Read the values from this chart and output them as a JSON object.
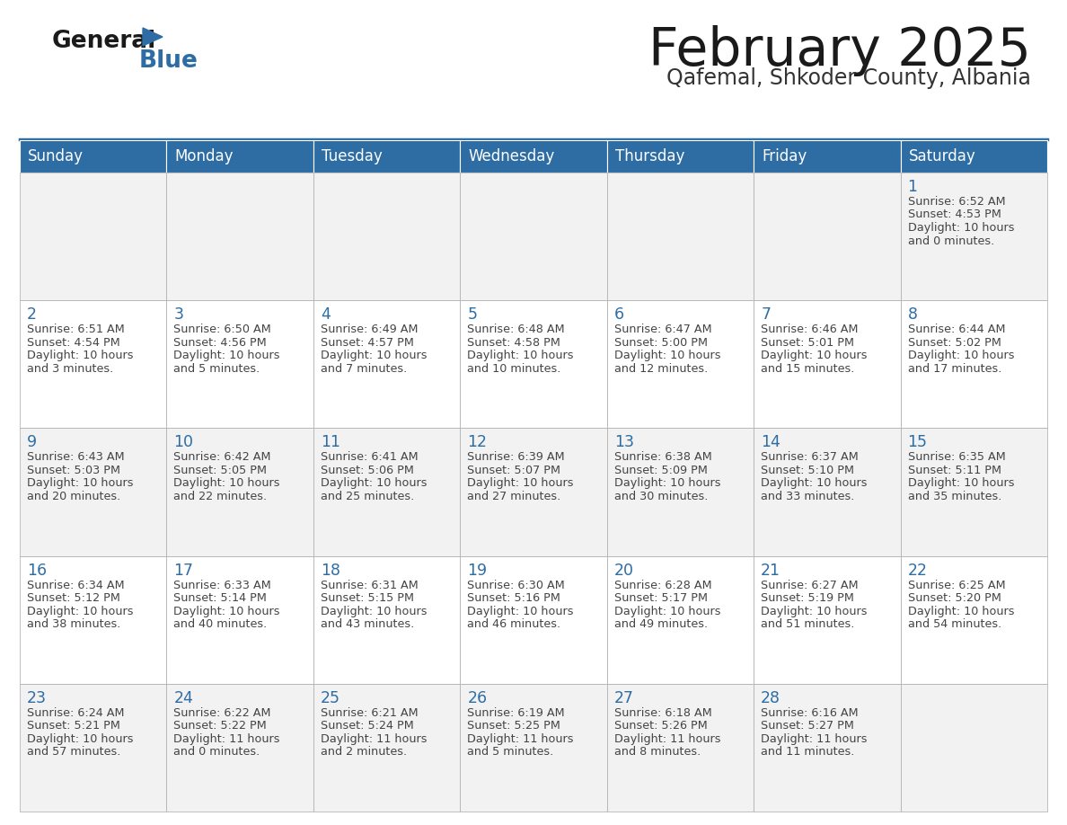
{
  "title": "February 2025",
  "subtitle": "Qafemal, Shkoder County, Albania",
  "days_of_week": [
    "Sunday",
    "Monday",
    "Tuesday",
    "Wednesday",
    "Thursday",
    "Friday",
    "Saturday"
  ],
  "header_bg": "#2E6DA4",
  "header_text": "#FFFFFF",
  "cell_bg_even": "#F2F2F2",
  "cell_bg_odd": "#FFFFFF",
  "cell_border": "#AAAAAA",
  "day_number_color": "#2E6DA4",
  "text_color": "#444444",
  "title_color": "#1a1a1a",
  "subtitle_color": "#333333",
  "logo_general_color": "#1a1a1a",
  "logo_blue_color": "#2E6DA4",
  "logo_triangle_color": "#2E6DA4",
  "calendar": [
    [
      null,
      null,
      null,
      null,
      null,
      null,
      {
        "day": 1,
        "sunrise": "6:52 AM",
        "sunset": "4:53 PM",
        "daylight_line1": "Daylight: 10 hours",
        "daylight_line2": "and 0 minutes."
      }
    ],
    [
      {
        "day": 2,
        "sunrise": "6:51 AM",
        "sunset": "4:54 PM",
        "daylight_line1": "Daylight: 10 hours",
        "daylight_line2": "and 3 minutes."
      },
      {
        "day": 3,
        "sunrise": "6:50 AM",
        "sunset": "4:56 PM",
        "daylight_line1": "Daylight: 10 hours",
        "daylight_line2": "and 5 minutes."
      },
      {
        "day": 4,
        "sunrise": "6:49 AM",
        "sunset": "4:57 PM",
        "daylight_line1": "Daylight: 10 hours",
        "daylight_line2": "and 7 minutes."
      },
      {
        "day": 5,
        "sunrise": "6:48 AM",
        "sunset": "4:58 PM",
        "daylight_line1": "Daylight: 10 hours",
        "daylight_line2": "and 10 minutes."
      },
      {
        "day": 6,
        "sunrise": "6:47 AM",
        "sunset": "5:00 PM",
        "daylight_line1": "Daylight: 10 hours",
        "daylight_line2": "and 12 minutes."
      },
      {
        "day": 7,
        "sunrise": "6:46 AM",
        "sunset": "5:01 PM",
        "daylight_line1": "Daylight: 10 hours",
        "daylight_line2": "and 15 minutes."
      },
      {
        "day": 8,
        "sunrise": "6:44 AM",
        "sunset": "5:02 PM",
        "daylight_line1": "Daylight: 10 hours",
        "daylight_line2": "and 17 minutes."
      }
    ],
    [
      {
        "day": 9,
        "sunrise": "6:43 AM",
        "sunset": "5:03 PM",
        "daylight_line1": "Daylight: 10 hours",
        "daylight_line2": "and 20 minutes."
      },
      {
        "day": 10,
        "sunrise": "6:42 AM",
        "sunset": "5:05 PM",
        "daylight_line1": "Daylight: 10 hours",
        "daylight_line2": "and 22 minutes."
      },
      {
        "day": 11,
        "sunrise": "6:41 AM",
        "sunset": "5:06 PM",
        "daylight_line1": "Daylight: 10 hours",
        "daylight_line2": "and 25 minutes."
      },
      {
        "day": 12,
        "sunrise": "6:39 AM",
        "sunset": "5:07 PM",
        "daylight_line1": "Daylight: 10 hours",
        "daylight_line2": "and 27 minutes."
      },
      {
        "day": 13,
        "sunrise": "6:38 AM",
        "sunset": "5:09 PM",
        "daylight_line1": "Daylight: 10 hours",
        "daylight_line2": "and 30 minutes."
      },
      {
        "day": 14,
        "sunrise": "6:37 AM",
        "sunset": "5:10 PM",
        "daylight_line1": "Daylight: 10 hours",
        "daylight_line2": "and 33 minutes."
      },
      {
        "day": 15,
        "sunrise": "6:35 AM",
        "sunset": "5:11 PM",
        "daylight_line1": "Daylight: 10 hours",
        "daylight_line2": "and 35 minutes."
      }
    ],
    [
      {
        "day": 16,
        "sunrise": "6:34 AM",
        "sunset": "5:12 PM",
        "daylight_line1": "Daylight: 10 hours",
        "daylight_line2": "and 38 minutes."
      },
      {
        "day": 17,
        "sunrise": "6:33 AM",
        "sunset": "5:14 PM",
        "daylight_line1": "Daylight: 10 hours",
        "daylight_line2": "and 40 minutes."
      },
      {
        "day": 18,
        "sunrise": "6:31 AM",
        "sunset": "5:15 PM",
        "daylight_line1": "Daylight: 10 hours",
        "daylight_line2": "and 43 minutes."
      },
      {
        "day": 19,
        "sunrise": "6:30 AM",
        "sunset": "5:16 PM",
        "daylight_line1": "Daylight: 10 hours",
        "daylight_line2": "and 46 minutes."
      },
      {
        "day": 20,
        "sunrise": "6:28 AM",
        "sunset": "5:17 PM",
        "daylight_line1": "Daylight: 10 hours",
        "daylight_line2": "and 49 minutes."
      },
      {
        "day": 21,
        "sunrise": "6:27 AM",
        "sunset": "5:19 PM",
        "daylight_line1": "Daylight: 10 hours",
        "daylight_line2": "and 51 minutes."
      },
      {
        "day": 22,
        "sunrise": "6:25 AM",
        "sunset": "5:20 PM",
        "daylight_line1": "Daylight: 10 hours",
        "daylight_line2": "and 54 minutes."
      }
    ],
    [
      {
        "day": 23,
        "sunrise": "6:24 AM",
        "sunset": "5:21 PM",
        "daylight_line1": "Daylight: 10 hours",
        "daylight_line2": "and 57 minutes."
      },
      {
        "day": 24,
        "sunrise": "6:22 AM",
        "sunset": "5:22 PM",
        "daylight_line1": "Daylight: 11 hours",
        "daylight_line2": "and 0 minutes."
      },
      {
        "day": 25,
        "sunrise": "6:21 AM",
        "sunset": "5:24 PM",
        "daylight_line1": "Daylight: 11 hours",
        "daylight_line2": "and 2 minutes."
      },
      {
        "day": 26,
        "sunrise": "6:19 AM",
        "sunset": "5:25 PM",
        "daylight_line1": "Daylight: 11 hours",
        "daylight_line2": "and 5 minutes."
      },
      {
        "day": 27,
        "sunrise": "6:18 AM",
        "sunset": "5:26 PM",
        "daylight_line1": "Daylight: 11 hours",
        "daylight_line2": "and 8 minutes."
      },
      {
        "day": 28,
        "sunrise": "6:16 AM",
        "sunset": "5:27 PM",
        "daylight_line1": "Daylight: 11 hours",
        "daylight_line2": "and 11 minutes."
      },
      null
    ]
  ]
}
